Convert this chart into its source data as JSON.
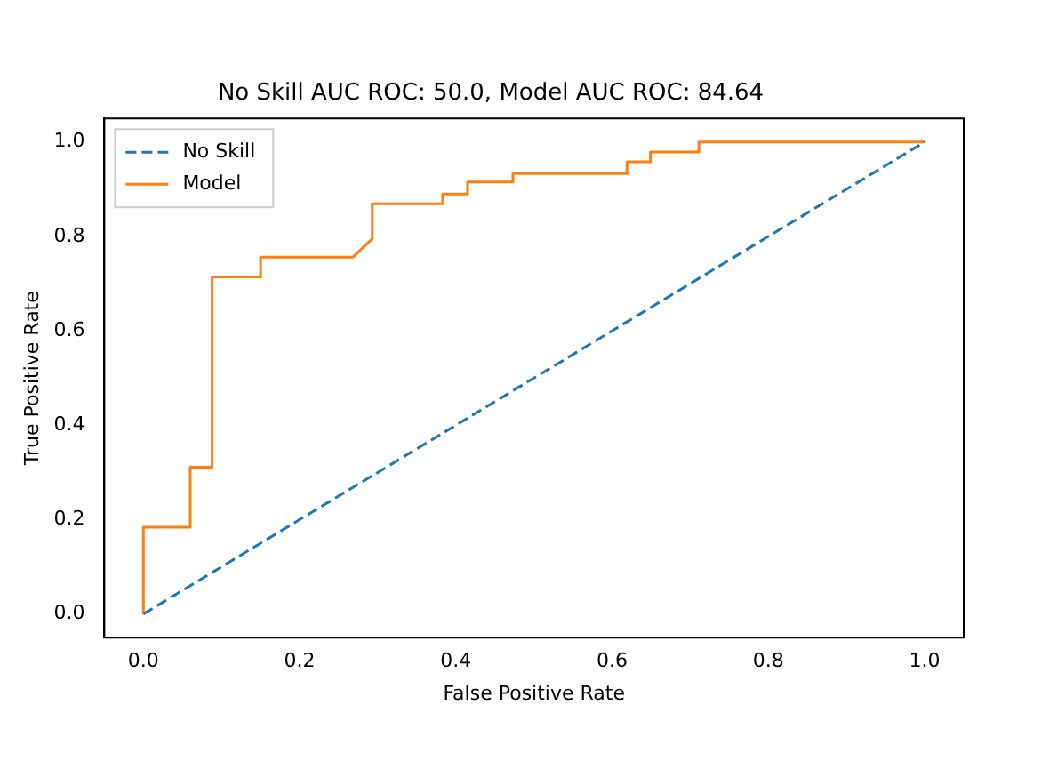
{
  "chart_data": {
    "type": "line",
    "title": "No Skill AUC ROC: 50.0, Model AUC ROC: 84.64",
    "xlabel": "False Positive Rate",
    "ylabel": "True Positive Rate",
    "xlim": [
      -0.05,
      1.05
    ],
    "ylim": [
      -0.05,
      1.05
    ],
    "xticks": [
      {
        "value": 0,
        "label": "0.0"
      },
      {
        "value": 0.2,
        "label": "0.2"
      },
      {
        "value": 0.4,
        "label": "0.4"
      },
      {
        "value": 0.6,
        "label": "0.6"
      },
      {
        "value": 0.8,
        "label": "0.8"
      },
      {
        "value": 1,
        "label": "1.0"
      }
    ],
    "yticks": [
      {
        "value": 0,
        "label": "0.0"
      },
      {
        "value": 0.2,
        "label": "0.2"
      },
      {
        "value": 0.4,
        "label": "0.4"
      },
      {
        "value": 0.6,
        "label": "0.6"
      },
      {
        "value": 0.8,
        "label": "0.8"
      },
      {
        "value": 1,
        "label": "1.0"
      }
    ],
    "grid": false,
    "legend": "top left",
    "marker": "none",
    "series": [
      {
        "name": "No Skill",
        "color": "#1f77b4",
        "line_style": "dashed",
        "x": [
          0,
          1
        ],
        "values": [
          0,
          1
        ]
      },
      {
        "name": "Model",
        "color": "#ff7f0e",
        "line_style": "solid",
        "x": [
          0,
          0,
          0.06,
          0.06,
          0.088,
          0.088,
          0.15,
          0.15,
          0.268,
          0.293,
          0.293,
          0.383,
          0.383,
          0.415,
          0.415,
          0.473,
          0.473,
          0.619,
          0.619,
          0.649,
          0.649,
          0.711,
          0.711,
          1
        ],
        "values": [
          0,
          0.184,
          0.184,
          0.311,
          0.311,
          0.714,
          0.714,
          0.756,
          0.756,
          0.795,
          0.869,
          0.869,
          0.89,
          0.89,
          0.915,
          0.915,
          0.933,
          0.933,
          0.958,
          0.958,
          0.979,
          0.979,
          1,
          1
        ]
      }
    ]
  }
}
